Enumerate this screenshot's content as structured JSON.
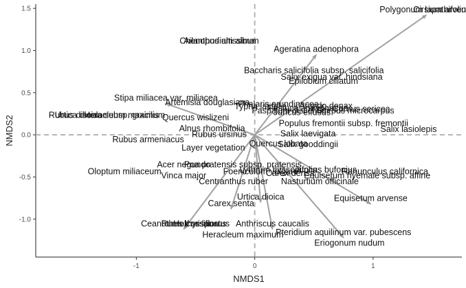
{
  "chart_data": {
    "type": "scatter",
    "xlabel": "NMDS1",
    "ylabel": "NMDS2",
    "xlim": [
      -1.85,
      1.75
    ],
    "ylim": [
      -1.45,
      1.55
    ],
    "x_ticks": [
      -1,
      0,
      1
    ],
    "y_ticks": [
      -1.0,
      -0.5,
      0.0,
      0.5,
      1.0,
      1.5
    ],
    "x_tick_labels": [
      "-1",
      "0",
      "1"
    ],
    "y_tick_labels": [
      "-1.0",
      "-0.5",
      "0.0",
      "0.5",
      "1.0",
      "1.5"
    ],
    "grid": false,
    "reference_lines": {
      "x": 0,
      "y": 0,
      "style": "dashed"
    },
    "arrow_color": "#a0a0a0",
    "reference_line_color": "#b3b3b3",
    "species": [
      {
        "name": "Polygonum lapathifolium",
        "x": 1.45,
        "y": 1.42,
        "arrow": true
      },
      {
        "name": "Cirsium arvense",
        "x": 1.6,
        "y": 1.42,
        "arrow": false
      },
      {
        "name": "Ailanthus altissima",
        "x": -0.3,
        "y": 1.05,
        "arrow": false
      },
      {
        "name": "Chenopodium album",
        "x": -0.3,
        "y": 1.05,
        "arrow": false
      },
      {
        "name": "Ageratina adenophora",
        "x": 0.52,
        "y": 0.95,
        "arrow": true
      },
      {
        "name": "Baccharis salicifolia subsp. salicifolia",
        "x": 0.5,
        "y": 0.7,
        "arrow": false
      },
      {
        "name": "Salix exigua var. hindsiana",
        "x": 0.65,
        "y": 0.62,
        "arrow": false
      },
      {
        "name": "Epilobium ciliatum",
        "x": 0.58,
        "y": 0.57,
        "arrow": false
      },
      {
        "name": "Stipa miliacea var. miliacea",
        "x": -0.75,
        "y": 0.37,
        "arrow": true
      },
      {
        "name": "Artemisia douglasiana",
        "x": -0.4,
        "y": 0.32,
        "arrow": false
      },
      {
        "name": "Phalaris arundinacea",
        "x": 0.2,
        "y": 0.3,
        "arrow": false
      },
      {
        "name": "Typha latifolia",
        "x": 0.05,
        "y": 0.27,
        "arrow": false
      },
      {
        "name": "Paspalum distichum",
        "x": 0.3,
        "y": 0.22,
        "arrow": false
      },
      {
        "name": "Festuca arundinacea",
        "x": 0.45,
        "y": 0.25,
        "arrow": false
      },
      {
        "name": "Arundo donax",
        "x": 0.6,
        "y": 0.28,
        "arrow": false
      },
      {
        "name": "Rubus discolor",
        "x": -1.5,
        "y": 0.17,
        "arrow": false
      },
      {
        "name": "Urtica dioica subsp. gracilis",
        "x": -1.25,
        "y": 0.17,
        "arrow": false
      },
      {
        "name": "Heracleum maximum",
        "x": -1.1,
        "y": 0.17,
        "arrow": false
      },
      {
        "name": "Cornus sericea",
        "x": 0.9,
        "y": 0.24,
        "arrow": false
      },
      {
        "name": "Scirpus microcarpus",
        "x": 0.85,
        "y": 0.22,
        "arrow": false
      },
      {
        "name": "Juncus effusus",
        "x": 0.4,
        "y": 0.2,
        "arrow": false
      },
      {
        "name": "Quercus wislizeni",
        "x": -0.5,
        "y": 0.14,
        "arrow": false
      },
      {
        "name": "Alnus rhombifolia",
        "x": -0.36,
        "y": 0.01,
        "arrow": false
      },
      {
        "name": "Populus fremontii subsp. fremontii",
        "x": 0.75,
        "y": 0.07,
        "arrow": false
      },
      {
        "name": "Salix lasiolepis",
        "x": 1.3,
        "y": 0.0,
        "arrow": false
      },
      {
        "name": "Salix laevigata",
        "x": 0.45,
        "y": -0.05,
        "arrow": false
      },
      {
        "name": "Rubus ursinus",
        "x": -0.3,
        "y": -0.06,
        "arrow": false
      },
      {
        "name": "Rubus armeniacus",
        "x": -0.9,
        "y": -0.12,
        "arrow": false
      },
      {
        "name": "Layer vegetation",
        "x": -0.35,
        "y": -0.22,
        "arrow": false
      },
      {
        "name": "Quercus lobata",
        "x": 0.2,
        "y": -0.17,
        "arrow": false
      },
      {
        "name": "Salix gooddingii",
        "x": 0.45,
        "y": -0.18,
        "arrow": false
      },
      {
        "name": "Acer negundo",
        "x": -0.6,
        "y": -0.42,
        "arrow": false
      },
      {
        "name": "Poa pratensis subsp. pratensis",
        "x": -0.1,
        "y": -0.42,
        "arrow": false
      },
      {
        "name": "Oloptum miliaceum",
        "x": -1.1,
        "y": -0.5,
        "arrow": false
      },
      {
        "name": "Vinca major",
        "x": -0.6,
        "y": -0.55,
        "arrow": false
      },
      {
        "name": "Foeniculum vulgare",
        "x": 0.05,
        "y": -0.5,
        "arrow": false
      },
      {
        "name": "Lythrum hyssopifolia",
        "x": 0.2,
        "y": -0.48,
        "arrow": false
      },
      {
        "name": "Equisetum hyemale subsp. affine",
        "x": 0.95,
        "y": -0.55,
        "arrow": false
      },
      {
        "name": "Juncus bufonius",
        "x": 0.6,
        "y": -0.48,
        "arrow": false
      },
      {
        "name": "Carex densa",
        "x": 0.3,
        "y": -0.52,
        "arrow": false
      },
      {
        "name": "Ranunculus californica",
        "x": 1.1,
        "y": -0.5,
        "arrow": false
      },
      {
        "name": "Centranthus ruber",
        "x": -0.18,
        "y": -0.62,
        "arrow": false
      },
      {
        "name": "Nasturtium officinale",
        "x": 0.55,
        "y": -0.62,
        "arrow": false
      },
      {
        "name": "Urtica dioica",
        "x": 0.05,
        "y": -0.8,
        "arrow": true
      },
      {
        "name": "Carex senta",
        "x": -0.2,
        "y": -0.88,
        "arrow": true
      },
      {
        "name": "Equisetum arvense",
        "x": 0.98,
        "y": -0.82,
        "arrow": true
      },
      {
        "name": "Ceanothus thyrsiflorus",
        "x": -0.6,
        "y": -1.12,
        "arrow": true
      },
      {
        "name": "Rumex crispus",
        "x": -0.55,
        "y": -1.12,
        "arrow": false
      },
      {
        "name": "Holcus lanatus",
        "x": -0.45,
        "y": -1.12,
        "arrow": false
      },
      {
        "name": "Heracleum maximum",
        "x": -0.1,
        "y": -1.25,
        "arrow": false
      },
      {
        "name": "Anthriscus caucalis",
        "x": 0.15,
        "y": -1.12,
        "arrow": true
      },
      {
        "name": "Pteridium aquilinum var. pubescens",
        "x": 0.75,
        "y": -1.22,
        "arrow": true
      },
      {
        "name": "Eriogonum nudum",
        "x": 0.8,
        "y": -1.35,
        "arrow": false
      }
    ]
  }
}
